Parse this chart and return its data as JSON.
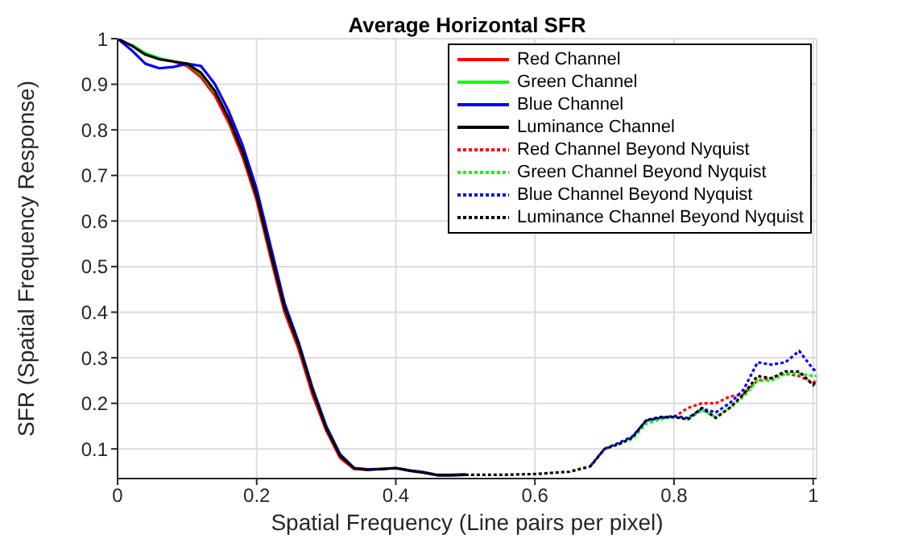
{
  "chart_data": {
    "type": "line",
    "title": "Average Horizontal SFR",
    "xlabel": "Spatial Frequency (Line pairs per pixel)",
    "ylabel": "SFR (Spatial Frequency Response)",
    "xlim": [
      0,
      1.005
    ],
    "ylim": [
      0.035,
      1
    ],
    "xticks": [
      0,
      0.2,
      0.4,
      0.6,
      0.8,
      1
    ],
    "yticks": [
      0.1,
      0.2,
      0.3,
      0.4,
      0.5,
      0.6,
      0.7,
      0.8,
      0.9,
      1
    ],
    "grid": true,
    "legend": "top right",
    "marker": "none",
    "series": [
      {
        "name": "Red Channel",
        "color": "#ff0000",
        "line_style": "solid",
        "x": [
          0.06,
          0.08,
          0.1,
          0.12,
          0.14,
          0.16,
          0.18,
          0.2,
          0.22,
          0.24,
          0.26,
          0.28,
          0.3,
          0.32,
          0.34,
          0.36
        ],
        "values": [
          0.955,
          0.95,
          0.94,
          0.915,
          0.875,
          0.815,
          0.74,
          0.645,
          0.52,
          0.4,
          0.32,
          0.22,
          0.14,
          0.08,
          0.056,
          0.054
        ]
      },
      {
        "name": "Green Channel",
        "color": "#00ff00",
        "line_style": "solid",
        "x": [
          0.02,
          0.04,
          0.06,
          0.08,
          0.1,
          0.12,
          0.14
        ],
        "values": [
          0.987,
          0.968,
          0.957,
          0.95,
          0.944,
          0.923,
          0.882
        ]
      },
      {
        "name": "Blue Channel",
        "color": "#0000ff",
        "line_style": "solid",
        "x": [
          0,
          0.02,
          0.04,
          0.06,
          0.08,
          0.1,
          0.12,
          0.14,
          0.16,
          0.18,
          0.2,
          0.22,
          0.24,
          0.26,
          0.28,
          0.3,
          0.32,
          0.34,
          0.36,
          0.38,
          0.4,
          0.42,
          0.44,
          0.46,
          0.48,
          0.5
        ],
        "values": [
          1,
          0.975,
          0.945,
          0.935,
          0.938,
          0.945,
          0.94,
          0.9,
          0.84,
          0.765,
          0.67,
          0.545,
          0.42,
          0.335,
          0.235,
          0.15,
          0.088,
          0.058,
          0.055,
          0.056,
          0.058,
          0.053,
          0.049,
          0.043,
          0.043,
          0.044
        ]
      },
      {
        "name": "Luminance Channel",
        "color": "#000000",
        "line_style": "solid",
        "x": [
          0,
          0.02,
          0.04,
          0.06,
          0.08,
          0.1,
          0.12,
          0.14,
          0.16,
          0.18,
          0.2,
          0.22,
          0.24,
          0.26,
          0.28,
          0.3,
          0.32,
          0.34,
          0.36,
          0.38,
          0.4,
          0.42,
          0.44,
          0.46,
          0.48,
          0.5
        ],
        "values": [
          1,
          0.985,
          0.965,
          0.955,
          0.95,
          0.945,
          0.925,
          0.885,
          0.825,
          0.75,
          0.655,
          0.53,
          0.41,
          0.33,
          0.23,
          0.145,
          0.085,
          0.058,
          0.054,
          0.056,
          0.058,
          0.052,
          0.048,
          0.042,
          0.042,
          0.043
        ]
      },
      {
        "name": "Red Channel Beyond Nyquist",
        "color": "#ff0000",
        "line_style": "dotted",
        "x": [
          0.8,
          0.82,
          0.84,
          0.86,
          0.88,
          0.9,
          0.92,
          0.94,
          0.96,
          0.98,
          1,
          1.005
        ],
        "values": [
          0.17,
          0.19,
          0.2,
          0.2,
          0.215,
          0.22,
          0.25,
          0.255,
          0.265,
          0.26,
          0.245,
          0.25
        ]
      },
      {
        "name": "Green Channel Beyond Nyquist",
        "color": "#00ff00",
        "line_style": "dotted",
        "x": [
          0.72,
          0.74,
          0.76,
          0.78,
          0.8,
          0.82,
          0.84,
          0.86,
          0.88,
          0.9,
          0.92,
          0.94,
          0.96,
          0.98,
          1,
          1.005
        ],
        "values": [
          0.11,
          0.122,
          0.155,
          0.165,
          0.17,
          0.165,
          0.185,
          0.17,
          0.19,
          0.215,
          0.25,
          0.25,
          0.265,
          0.265,
          0.26,
          0.26
        ]
      },
      {
        "name": "Blue Channel Beyond Nyquist",
        "color": "#0000ff",
        "line_style": "dotted",
        "x": [
          0.68,
          0.7,
          0.72,
          0.74,
          0.76,
          0.78,
          0.8,
          0.82,
          0.84,
          0.86,
          0.88,
          0.9,
          0.92,
          0.94,
          0.96,
          0.98,
          1,
          1.005
        ],
        "values": [
          0.063,
          0.1,
          0.113,
          0.127,
          0.162,
          0.168,
          0.172,
          0.168,
          0.188,
          0.18,
          0.2,
          0.23,
          0.29,
          0.285,
          0.29,
          0.315,
          0.275,
          0.27
        ]
      },
      {
        "name": "Luminance Channel Beyond Nyquist",
        "color": "#000000",
        "line_style": "dotted",
        "x": [
          0.5,
          0.55,
          0.6,
          0.65,
          0.68,
          0.7,
          0.72,
          0.74,
          0.76,
          0.78,
          0.8,
          0.82,
          0.84,
          0.86,
          0.88,
          0.9,
          0.92,
          0.94,
          0.96,
          0.98,
          1,
          1.005
        ],
        "values": [
          0.043,
          0.043,
          0.045,
          0.05,
          0.062,
          0.1,
          0.11,
          0.125,
          0.163,
          0.17,
          0.17,
          0.165,
          0.19,
          0.168,
          0.19,
          0.22,
          0.26,
          0.255,
          0.27,
          0.27,
          0.24,
          0.25
        ]
      }
    ]
  }
}
